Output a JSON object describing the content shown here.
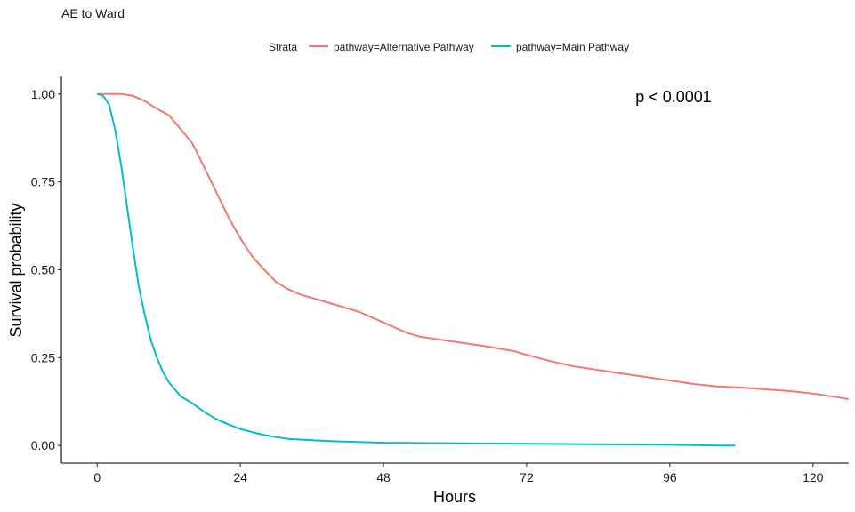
{
  "chart_data": {
    "type": "line",
    "title": "AE to Ward",
    "xlabel": "Hours",
    "ylabel": "Survival probability",
    "xlim": [
      -6,
      126
    ],
    "ylim": [
      -0.05,
      1.05
    ],
    "x_ticks": [
      0,
      24,
      48,
      72,
      96,
      120
    ],
    "x_tick_labels": [
      "0",
      "24",
      "48",
      "72",
      "96",
      "120"
    ],
    "y_ticks": [
      0,
      0.25,
      0.5,
      0.75,
      1.0
    ],
    "y_tick_labels": [
      "0.00",
      "0.25",
      "0.50",
      "0.75",
      "1.00"
    ],
    "grid": false,
    "legend": {
      "title": "Strata",
      "position": "top",
      "entries": [
        "pathway=Alternative Pathway",
        "pathway=Main Pathway"
      ]
    },
    "annotation": "p < 0.0001",
    "series": [
      {
        "name": "pathway=Alternative Pathway",
        "color": "#F8766D",
        "x": [
          0,
          2,
          4,
          6,
          8,
          10,
          12,
          14,
          16,
          18,
          20,
          22,
          24,
          26,
          28,
          30,
          32,
          34,
          36,
          40,
          44,
          48,
          52,
          54,
          58,
          62,
          66,
          70,
          72,
          76,
          80,
          84,
          88,
          92,
          96,
          100,
          104,
          108,
          112,
          116,
          120,
          124,
          126
        ],
        "y": [
          1.0,
          1.0,
          1.0,
          0.995,
          0.98,
          0.958,
          0.94,
          0.9,
          0.858,
          0.79,
          0.72,
          0.65,
          0.59,
          0.538,
          0.5,
          0.465,
          0.445,
          0.43,
          0.42,
          0.4,
          0.38,
          0.35,
          0.32,
          0.31,
          0.3,
          0.29,
          0.28,
          0.268,
          0.258,
          0.24,
          0.225,
          0.215,
          0.205,
          0.195,
          0.185,
          0.175,
          0.168,
          0.165,
          0.16,
          0.155,
          0.148,
          0.138,
          0.132
        ]
      },
      {
        "name": "pathway=Main Pathway",
        "color": "#00BFC4",
        "x": [
          0,
          1,
          2,
          3,
          4,
          5,
          6,
          7,
          8,
          9,
          10,
          11,
          12,
          14,
          16,
          18,
          20,
          22,
          24,
          26,
          28,
          30,
          32,
          36,
          40,
          44,
          48,
          56,
          64,
          72,
          80,
          88,
          96,
          100,
          104,
          107
        ],
        "y": [
          1.0,
          0.995,
          0.97,
          0.9,
          0.8,
          0.68,
          0.56,
          0.45,
          0.37,
          0.3,
          0.25,
          0.21,
          0.18,
          0.14,
          0.12,
          0.095,
          0.075,
          0.06,
          0.047,
          0.038,
          0.03,
          0.024,
          0.019,
          0.015,
          0.012,
          0.01,
          0.008,
          0.007,
          0.006,
          0.005,
          0.004,
          0.003,
          0.002,
          0.001,
          0.0,
          0.0
        ]
      }
    ]
  }
}
